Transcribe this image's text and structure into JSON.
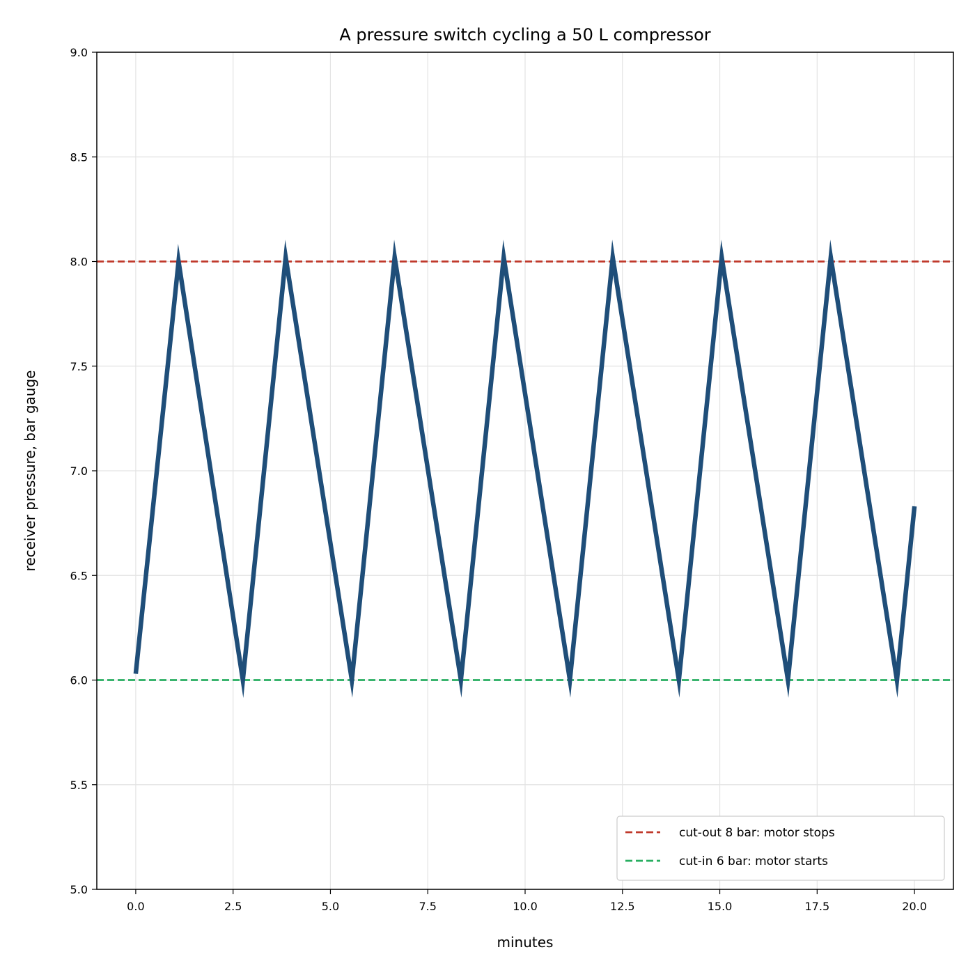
{
  "chart_data": {
    "type": "line",
    "title": "A pressure switch cycling a 50 L compressor",
    "xlabel": "minutes",
    "ylabel": "receiver pressure, bar gauge",
    "xlim": [
      -1.0,
      21.0
    ],
    "ylim": [
      5.0,
      9.0
    ],
    "xticks": [
      "0.0",
      "2.5",
      "5.0",
      "7.5",
      "10.0",
      "12.5",
      "15.0",
      "17.5",
      "20.0"
    ],
    "yticks": [
      "5.0",
      "5.5",
      "6.0",
      "6.5",
      "7.0",
      "7.5",
      "8.0",
      "8.5",
      "9.0"
    ],
    "grid": true,
    "legend_position": "bottom-right",
    "series": [
      {
        "color": "#1f4e79",
        "x": [
          0.0,
          1.1,
          2.75,
          3.85,
          5.55,
          6.65,
          8.35,
          9.45,
          11.15,
          12.25,
          13.95,
          15.05,
          16.75,
          17.85,
          19.55,
          20.0
        ],
        "y": [
          6.03,
          8.0,
          6.0,
          8.02,
          6.0,
          8.02,
          6.0,
          8.02,
          6.0,
          8.02,
          6.0,
          8.02,
          6.0,
          8.02,
          6.0,
          6.83
        ]
      }
    ],
    "reference_lines": [
      {
        "name": "cut-out 8 bar: motor stops",
        "y": 8.0,
        "color": "#c0392b",
        "style": "dashed"
      },
      {
        "name": "cut-in 6 bar: motor starts",
        "y": 6.0,
        "color": "#27ae60",
        "style": "dashed"
      }
    ]
  }
}
